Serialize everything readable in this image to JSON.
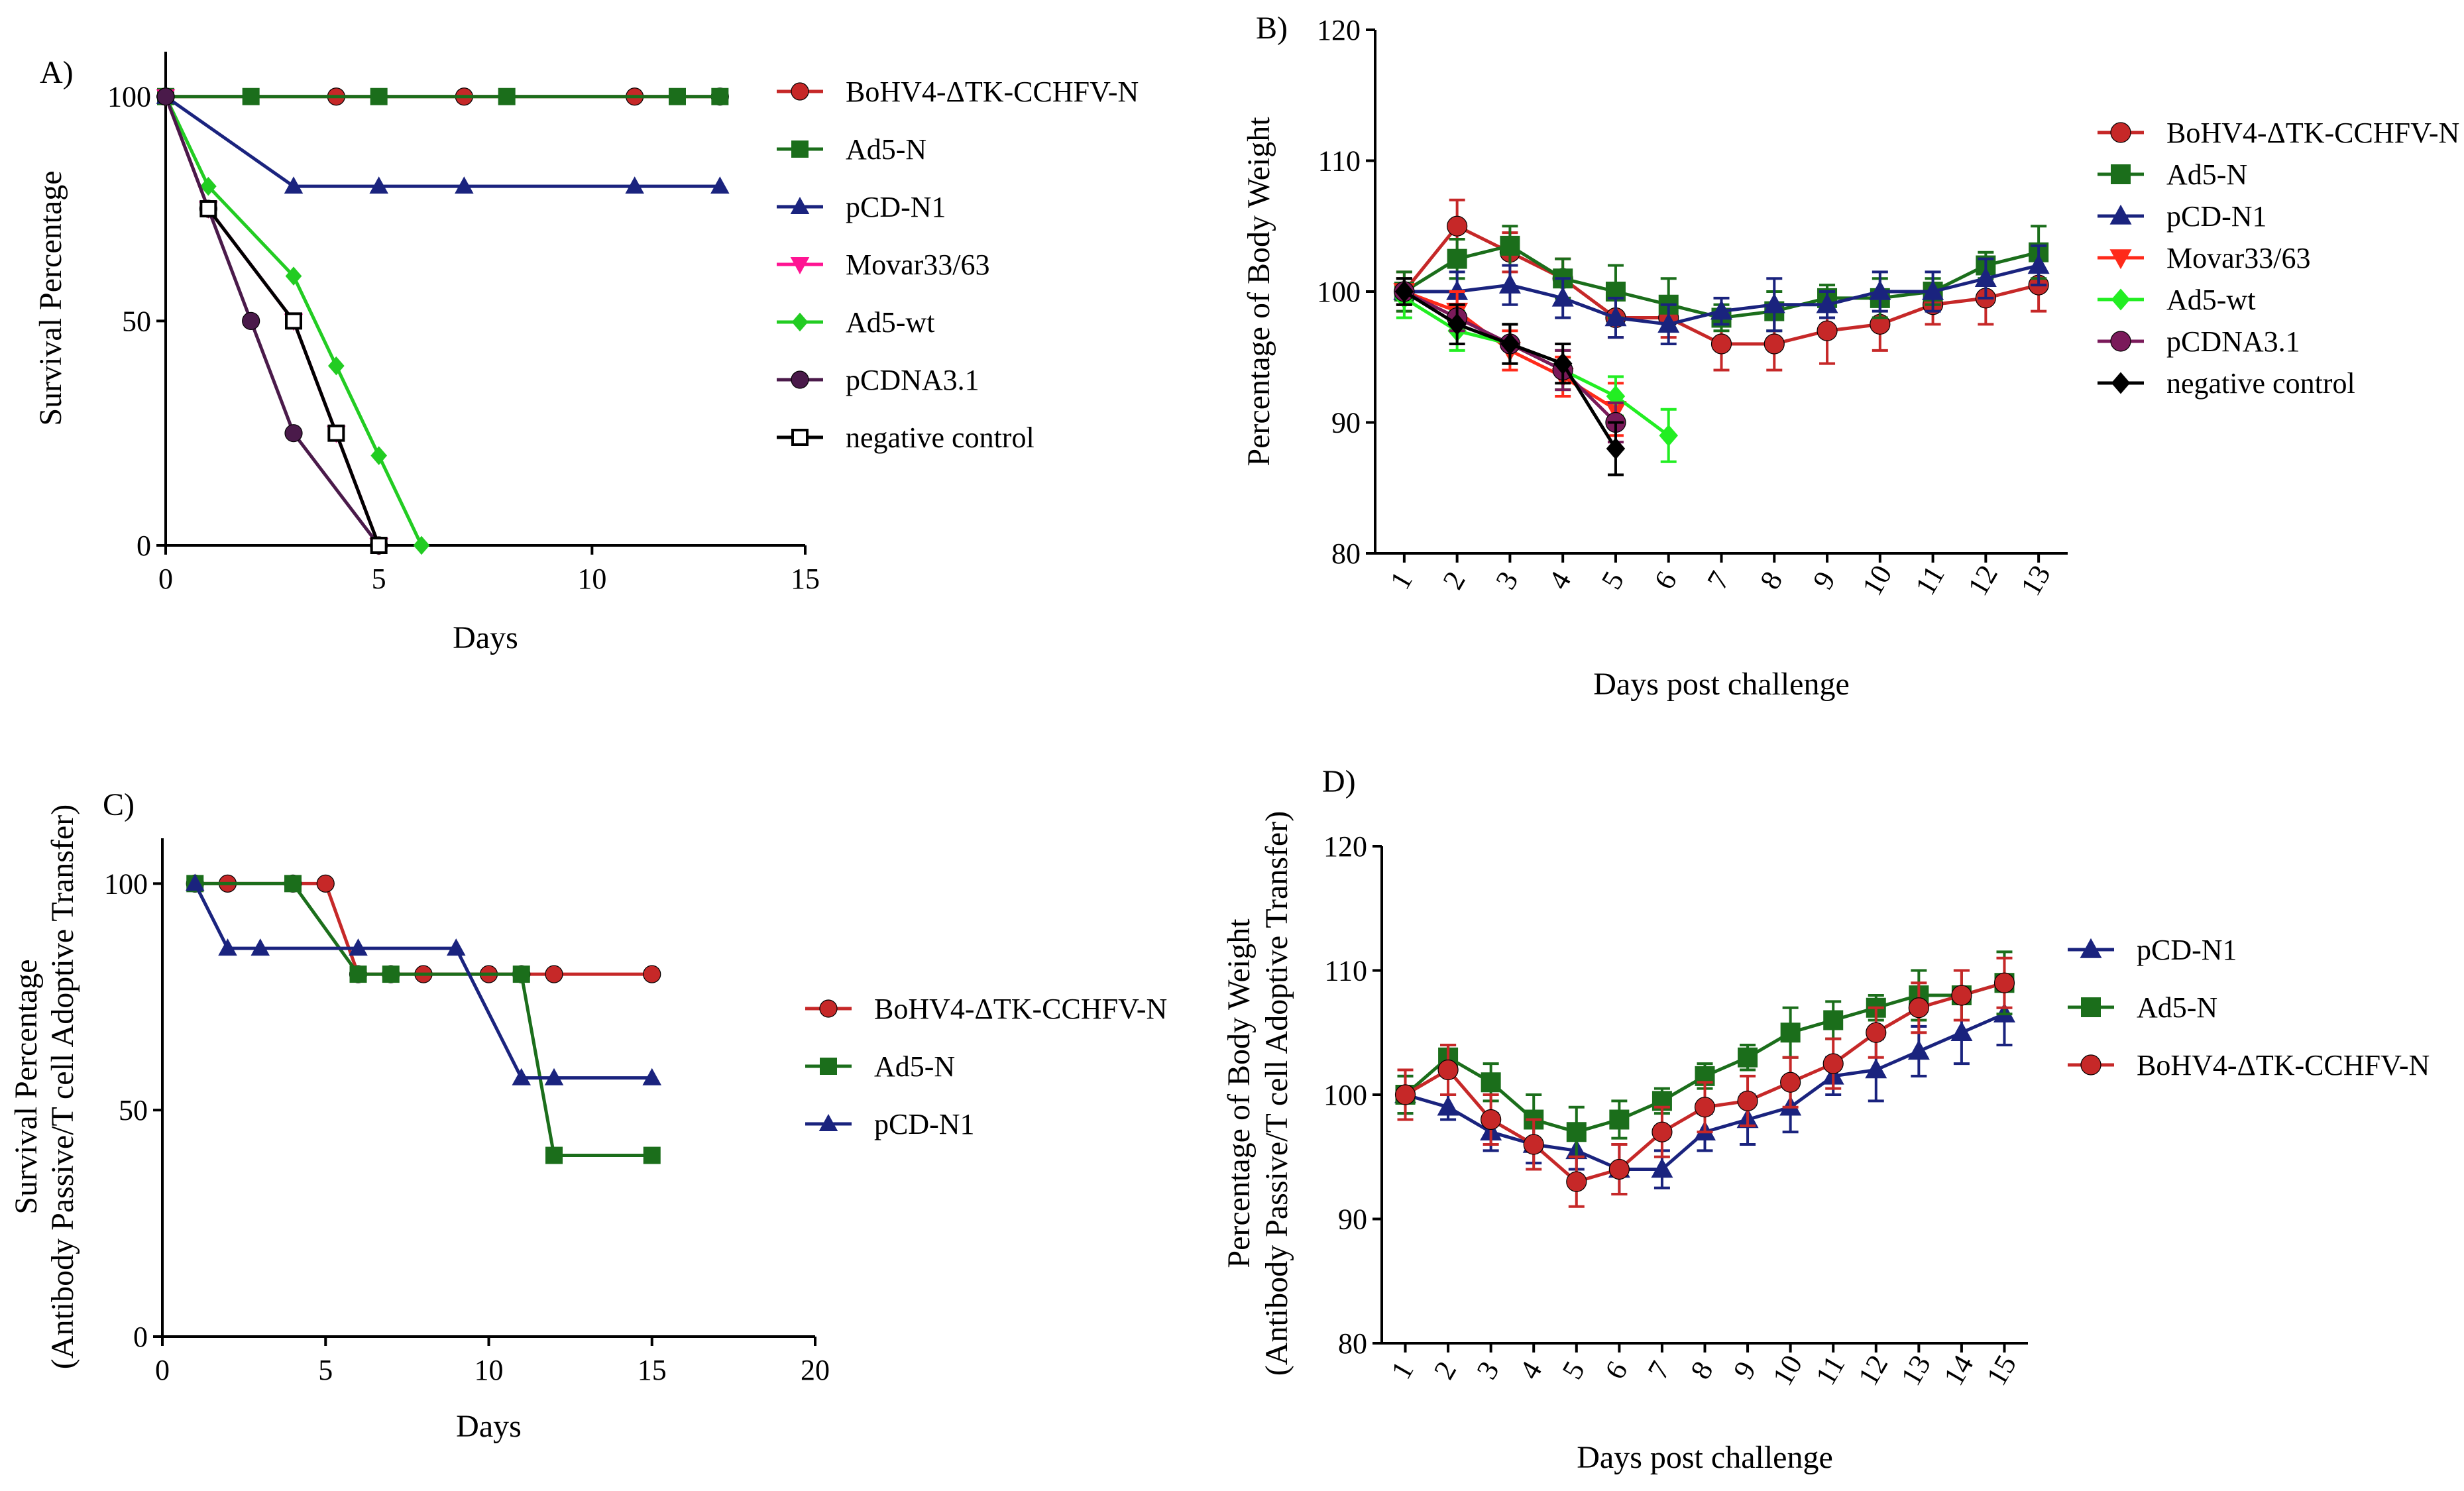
{
  "chart_data": [
    {
      "panel": "A)",
      "type": "line",
      "xlabel": "Days",
      "ylabel": "Survival Percentage",
      "xlim": [
        0,
        15
      ],
      "ylim": [
        0,
        110
      ],
      "xticks": [
        "0",
        "5",
        "10",
        "15"
      ],
      "yticks": [
        "0",
        "50",
        "100"
      ],
      "legend_position": "right",
      "series": [
        {
          "name": "BoHV4-ΔTK-CCHFV-N",
          "color": "#c62828",
          "marker": "circle",
          "x": [
            0,
            4,
            7,
            11,
            13
          ],
          "y": [
            100,
            100,
            100,
            100,
            100
          ]
        },
        {
          "name": "Ad5-N",
          "color": "#1b6e1b",
          "marker": "square",
          "x": [
            0,
            2,
            5,
            8,
            12,
            13
          ],
          "y": [
            100,
            100,
            100,
            100,
            100,
            100
          ]
        },
        {
          "name": "pCD-N1",
          "color": "#1a237e",
          "marker": "triangle",
          "x": [
            0,
            3,
            5,
            7,
            11,
            13
          ],
          "y": [
            100,
            80,
            80,
            80,
            80,
            80
          ]
        },
        {
          "name": "Movar33/63",
          "color": "#ff1493",
          "marker": "triangle-down",
          "x": [
            0,
            1,
            3,
            4,
            5
          ],
          "y": [
            100,
            75,
            50,
            25,
            0
          ]
        },
        {
          "name": "Ad5-wt",
          "color": "#22cc22",
          "marker": "diamond",
          "x": [
            0,
            1,
            3,
            4,
            5,
            6
          ],
          "y": [
            100,
            80,
            60,
            40,
            20,
            0
          ]
        },
        {
          "name": "pCDNA3.1",
          "color": "#4a1a4a",
          "marker": "circle",
          "x": [
            0,
            1,
            2,
            3,
            5
          ],
          "y": [
            100,
            75,
            50,
            25,
            0
          ]
        },
        {
          "name": "negative control",
          "color": "#000000",
          "marker": "open-square",
          "x": [
            1,
            3,
            4,
            5
          ],
          "y": [
            75,
            50,
            25,
            0
          ]
        }
      ]
    },
    {
      "panel": "B)",
      "type": "line",
      "xlabel": "Days post challenge",
      "ylabel": "Percentage of Body Weight",
      "ylim": [
        80,
        120
      ],
      "categories": [
        "1",
        "2",
        "3",
        "4",
        "5",
        "6",
        "7",
        "8",
        "9",
        "10",
        "11",
        "12",
        "13"
      ],
      "yticks": [
        "80",
        "90",
        "100",
        "110",
        "120"
      ],
      "legend_position": "right",
      "series": [
        {
          "name": "BoHV4-ΔTK-CCHFV-N",
          "color": "#c62828",
          "marker": "circle",
          "x": [
            1,
            2,
            3,
            4,
            5,
            6,
            7,
            8,
            9,
            10,
            11,
            12,
            13
          ],
          "y": [
            100,
            105,
            103,
            101,
            98,
            98,
            96,
            96,
            97,
            97.5,
            99,
            99.5,
            100.5
          ],
          "err": [
            1.5,
            2,
            1.5,
            1.5,
            1.5,
            1.5,
            2,
            2,
            2.5,
            2,
            1.5,
            2,
            2
          ]
        },
        {
          "name": "Ad5-N",
          "color": "#1b6e1b",
          "marker": "square",
          "x": [
            1,
            2,
            3,
            4,
            5,
            6,
            7,
            8,
            9,
            10,
            11,
            12,
            13
          ],
          "y": [
            100,
            102.5,
            103.5,
            101,
            100,
            99,
            98,
            98.5,
            99.5,
            99.5,
            100,
            102,
            103
          ],
          "err": [
            1.5,
            1.5,
            1.5,
            1.5,
            2,
            2,
            1,
            1.5,
            1,
            1.5,
            1,
            1,
            2
          ]
        },
        {
          "name": "pCD-N1",
          "color": "#1a237e",
          "marker": "triangle",
          "x": [
            1,
            2,
            3,
            4,
            5,
            6,
            7,
            8,
            9,
            10,
            11,
            12,
            13
          ],
          "y": [
            100,
            100,
            100.5,
            99.5,
            98,
            97.5,
            98.5,
            99,
            99,
            100,
            100,
            101,
            102
          ],
          "err": [
            1,
            1.5,
            1.5,
            1.5,
            1.5,
            1.5,
            1,
            2,
            1,
            1.5,
            1.5,
            1.5,
            1.5
          ]
        },
        {
          "name": "Movar33/63",
          "color": "#ff2a1a",
          "marker": "triangle-down",
          "x": [
            1,
            2,
            3,
            4,
            5
          ],
          "y": [
            100,
            98.5,
            95.5,
            93.5,
            91
          ],
          "err": [
            1,
            1.5,
            1.5,
            1.5,
            2
          ]
        },
        {
          "name": "Ad5-wt",
          "color": "#22ee22",
          "marker": "diamond",
          "x": [
            1,
            2,
            3,
            4,
            5,
            6
          ],
          "y": [
            99.5,
            97,
            96,
            94,
            92,
            89
          ],
          "err": [
            1.5,
            1.5,
            1.5,
            1.5,
            1.5,
            2
          ]
        },
        {
          "name": "pCDNA3.1",
          "color": "#7a1a5a",
          "marker": "circle",
          "x": [
            1,
            2,
            3,
            4,
            5
          ],
          "y": [
            100,
            98,
            96,
            94,
            90
          ],
          "err": [
            1,
            1,
            1.5,
            1.5,
            1.5
          ]
        },
        {
          "name": "negative control",
          "color": "#000000",
          "marker": "diamond",
          "x": [
            1,
            2,
            3,
            4,
            5
          ],
          "y": [
            100,
            97.5,
            96,
            94.5,
            88
          ],
          "err": [
            1,
            1.5,
            1.5,
            1.5,
            2
          ]
        }
      ]
    },
    {
      "panel": "C)",
      "type": "line",
      "xlabel": "Days",
      "ylabel": "Survival Percentage",
      "ylabel2": "(Antibody Passive/T cell Adoptive Transfer)",
      "xlim": [
        0,
        20
      ],
      "ylim": [
        0,
        110
      ],
      "xticks": [
        "0",
        "5",
        "10",
        "15",
        "20"
      ],
      "yticks": [
        "0",
        "50",
        "100"
      ],
      "legend_position": "right",
      "series": [
        {
          "name": "BoHV4-ΔTK-CCHFV-N",
          "color": "#c62828",
          "marker": "circle",
          "x": [
            1,
            2,
            4,
            5,
            6,
            7,
            8,
            10,
            11,
            12,
            15
          ],
          "y": [
            100,
            100,
            100,
            100,
            80,
            80,
            80,
            80,
            80,
            80,
            80
          ]
        },
        {
          "name": "Ad5-N",
          "color": "#1b6e1b",
          "marker": "square",
          "x": [
            1,
            4,
            6,
            7,
            11,
            12,
            15
          ],
          "y": [
            100,
            100,
            80,
            80,
            80,
            40,
            40
          ]
        },
        {
          "name": "pCD-N1",
          "color": "#1a237e",
          "marker": "triangle",
          "x": [
            1,
            2,
            3,
            6,
            9,
            11,
            12,
            15
          ],
          "y": [
            100,
            85.7,
            85.7,
            85.7,
            85.7,
            57.1,
            57.1,
            57.1
          ]
        }
      ]
    },
    {
      "panel": "D)",
      "type": "line",
      "xlabel": "Days post challenge",
      "ylabel": "Percentage of Body Weight",
      "ylabel2": "(Antibody Passive/T cell Adoptive Transfer)",
      "ylim": [
        80,
        120
      ],
      "categories": [
        "1",
        "2",
        "3",
        "4",
        "5",
        "6",
        "7",
        "8",
        "9",
        "10",
        "11",
        "12",
        "13",
        "14",
        "15"
      ],
      "yticks": [
        "80",
        "90",
        "100",
        "110",
        "120"
      ],
      "legend_position": "right",
      "series": [
        {
          "name": "pCD-N1",
          "color": "#1a237e",
          "marker": "triangle",
          "x": [
            1,
            2,
            3,
            4,
            5,
            6,
            7,
            8,
            9,
            10,
            11,
            12,
            13,
            14,
            15
          ],
          "y": [
            100,
            99,
            97,
            96,
            95.5,
            94,
            94,
            97,
            98,
            99,
            101.5,
            102,
            103.5,
            105,
            106.5
          ],
          "err": [
            1.5,
            1,
            1.5,
            1.5,
            1.5,
            2,
            1.5,
            1.5,
            2,
            2,
            1.5,
            2.5,
            2,
            2.5,
            2.5
          ]
        },
        {
          "name": "Ad5-N",
          "color": "#1b6e1b",
          "marker": "square",
          "x": [
            1,
            2,
            3,
            4,
            5,
            6,
            7,
            8,
            9,
            10,
            11,
            12,
            13,
            14,
            15
          ],
          "y": [
            100,
            103,
            101,
            98,
            97,
            98,
            99.5,
            101.5,
            103,
            105,
            106,
            107,
            108,
            108,
            109
          ],
          "err": [
            1.5,
            1,
            1.5,
            2,
            2,
            1.5,
            1,
            1,
            1,
            2,
            1.5,
            1,
            2,
            2,
            2.5
          ]
        },
        {
          "name": "BoHV4-ΔTK-CCHFV-N",
          "color": "#c62828",
          "marker": "circle",
          "x": [
            1,
            2,
            3,
            4,
            5,
            6,
            7,
            8,
            9,
            10,
            11,
            12,
            13,
            14,
            15
          ],
          "y": [
            100,
            102,
            98,
            96,
            93,
            94,
            97,
            99,
            99.5,
            101,
            102.5,
            105,
            107,
            108,
            109
          ],
          "err": [
            2,
            2,
            2,
            2,
            2,
            2,
            2,
            2,
            2,
            2,
            2,
            2,
            2,
            2,
            2
          ]
        }
      ]
    }
  ]
}
